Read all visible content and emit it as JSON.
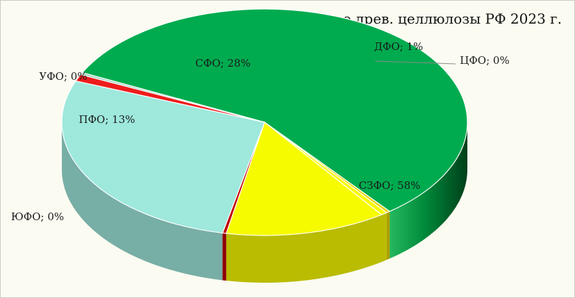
{
  "chart_data": {
    "type": "pie",
    "style": "3d",
    "title": "Производство древ. целлюлозы РФ 2023 г.",
    "slices": [
      {
        "name": "СЗФО",
        "value": 58,
        "label": "СЗФО; 58%",
        "color": "#00ab4f"
      },
      {
        "name": "ЮФО",
        "value": 0.3,
        "label": "ЮФО; 0%",
        "color": "#e7d200"
      },
      {
        "name": "ПФО",
        "value": 0.5,
        "label": "ПФО; 13%",
        "color": "#f7fb00"
      },
      {
        "name": "ПФО",
        "value": 13,
        "label": "",
        "color": "#f7fb00"
      },
      {
        "name": "УФО",
        "value": 0.3,
        "label": "УФО; 0%",
        "color": "#c00000"
      },
      {
        "name": "СФО",
        "value": 28,
        "label": "СФО; 28%",
        "color": "#9ee8dc"
      },
      {
        "name": "ДФО",
        "value": 1,
        "label": "ДФО; 1%",
        "color": "#ee1c1c"
      },
      {
        "name": "ЦФО",
        "value": 0.3,
        "label": "ЦФО; 0%",
        "color": "#9ad7c0"
      }
    ],
    "legend": "none"
  }
}
